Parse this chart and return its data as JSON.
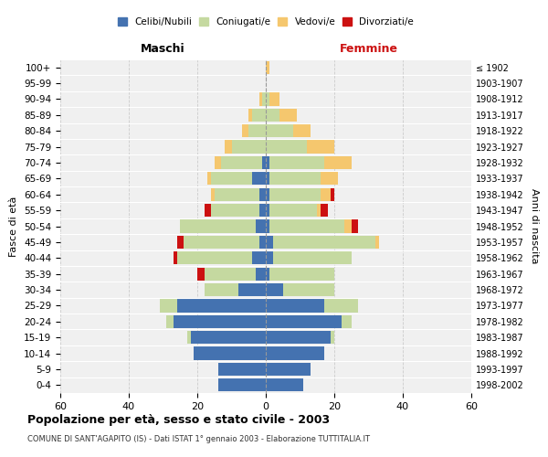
{
  "age_groups": [
    "0-4",
    "5-9",
    "10-14",
    "15-19",
    "20-24",
    "25-29",
    "30-34",
    "35-39",
    "40-44",
    "45-49",
    "50-54",
    "55-59",
    "60-64",
    "65-69",
    "70-74",
    "75-79",
    "80-84",
    "85-89",
    "90-94",
    "95-99",
    "100+"
  ],
  "birth_years": [
    "1998-2002",
    "1993-1997",
    "1988-1992",
    "1983-1987",
    "1978-1982",
    "1973-1977",
    "1968-1972",
    "1963-1967",
    "1958-1962",
    "1953-1957",
    "1948-1952",
    "1943-1947",
    "1938-1942",
    "1933-1937",
    "1928-1932",
    "1923-1927",
    "1918-1922",
    "1913-1917",
    "1908-1912",
    "1903-1907",
    "≤ 1902"
  ],
  "males": {
    "celibe": [
      14,
      14,
      21,
      22,
      27,
      26,
      8,
      3,
      4,
      2,
      3,
      2,
      2,
      4,
      1,
      0,
      0,
      0,
      0,
      0,
      0
    ],
    "coniugato": [
      0,
      0,
      0,
      1,
      2,
      5,
      10,
      15,
      22,
      22,
      22,
      14,
      13,
      12,
      12,
      10,
      5,
      4,
      1,
      0,
      0
    ],
    "vedovo": [
      0,
      0,
      0,
      0,
      0,
      0,
      0,
      0,
      0,
      0,
      0,
      0,
      1,
      1,
      2,
      2,
      2,
      1,
      1,
      0,
      0
    ],
    "divorziato": [
      0,
      0,
      0,
      0,
      0,
      0,
      0,
      2,
      1,
      2,
      0,
      2,
      0,
      0,
      0,
      0,
      0,
      0,
      0,
      0,
      0
    ]
  },
  "females": {
    "nubile": [
      11,
      13,
      17,
      19,
      22,
      17,
      5,
      1,
      2,
      2,
      1,
      1,
      1,
      1,
      1,
      0,
      0,
      0,
      0,
      0,
      0
    ],
    "coniugata": [
      0,
      0,
      0,
      1,
      3,
      10,
      15,
      19,
      23,
      30,
      22,
      14,
      15,
      15,
      16,
      12,
      8,
      4,
      1,
      0,
      0
    ],
    "vedova": [
      0,
      0,
      0,
      0,
      0,
      0,
      0,
      0,
      0,
      1,
      2,
      1,
      3,
      5,
      8,
      8,
      5,
      5,
      3,
      0,
      1
    ],
    "divorziata": [
      0,
      0,
      0,
      0,
      0,
      0,
      0,
      0,
      0,
      0,
      2,
      2,
      1,
      0,
      0,
      0,
      0,
      0,
      0,
      0,
      0
    ]
  },
  "colors": {
    "celibe_nubile": "#4472b0",
    "coniugato_a": "#c5d9a0",
    "vedovo_a": "#f5c76e",
    "divorziato_a": "#cc1111"
  },
  "title": "Popolazione per età, sesso e stato civile - 2003",
  "subtitle": "COMUNE DI SANT'AGAPITO (IS) - Dati ISTAT 1° gennaio 2003 - Elaborazione TUTTITALIA.IT",
  "xlabel_left": "Maschi",
  "xlabel_right": "Femmine",
  "ylabel_left": "Fasce di età",
  "ylabel_right": "Anni di nascita",
  "xlim": 60,
  "bg_color": "#ffffff",
  "plot_bg_color": "#f0f0f0",
  "grid_color": "#cccccc",
  "legend_labels": [
    "Celibi/Nubili",
    "Coniugati/e",
    "Vedovi/e",
    "Divorziati/e"
  ]
}
